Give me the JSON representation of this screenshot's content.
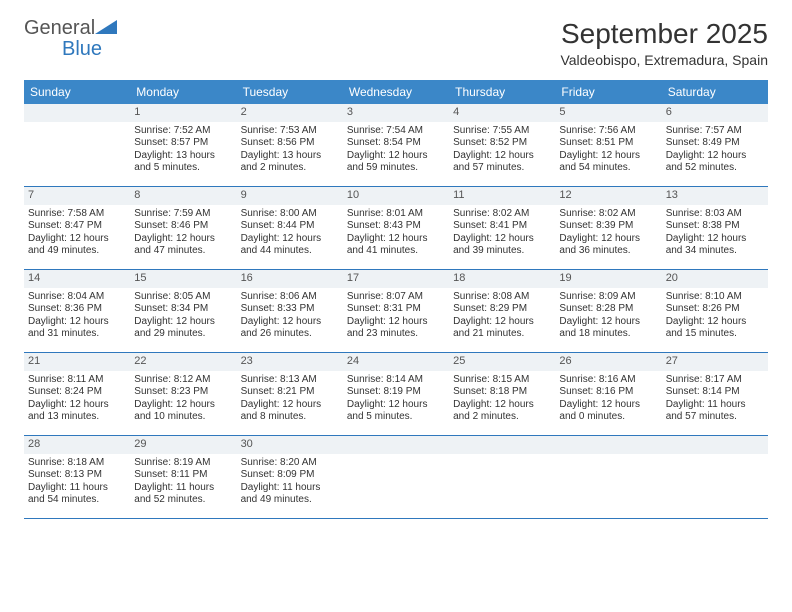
{
  "logo": {
    "text1": "General",
    "text2": "Blue"
  },
  "title": "September 2025",
  "subtitle": "Valdeobispo, Extremadura, Spain",
  "colors": {
    "header_bg": "#3b87c8",
    "header_text": "#ffffff",
    "daynum_bg": "#eef2f5",
    "border": "#2f78bd",
    "logo_accent": "#2f78bd"
  },
  "day_headers": [
    "Sunday",
    "Monday",
    "Tuesday",
    "Wednesday",
    "Thursday",
    "Friday",
    "Saturday"
  ],
  "weeks": [
    [
      {
        "n": "",
        "sr": "",
        "ss": "",
        "dl": ""
      },
      {
        "n": "1",
        "sr": "Sunrise: 7:52 AM",
        "ss": "Sunset: 8:57 PM",
        "dl": "Daylight: 13 hours and 5 minutes."
      },
      {
        "n": "2",
        "sr": "Sunrise: 7:53 AM",
        "ss": "Sunset: 8:56 PM",
        "dl": "Daylight: 13 hours and 2 minutes."
      },
      {
        "n": "3",
        "sr": "Sunrise: 7:54 AM",
        "ss": "Sunset: 8:54 PM",
        "dl": "Daylight: 12 hours and 59 minutes."
      },
      {
        "n": "4",
        "sr": "Sunrise: 7:55 AM",
        "ss": "Sunset: 8:52 PM",
        "dl": "Daylight: 12 hours and 57 minutes."
      },
      {
        "n": "5",
        "sr": "Sunrise: 7:56 AM",
        "ss": "Sunset: 8:51 PM",
        "dl": "Daylight: 12 hours and 54 minutes."
      },
      {
        "n": "6",
        "sr": "Sunrise: 7:57 AM",
        "ss": "Sunset: 8:49 PM",
        "dl": "Daylight: 12 hours and 52 minutes."
      }
    ],
    [
      {
        "n": "7",
        "sr": "Sunrise: 7:58 AM",
        "ss": "Sunset: 8:47 PM",
        "dl": "Daylight: 12 hours and 49 minutes."
      },
      {
        "n": "8",
        "sr": "Sunrise: 7:59 AM",
        "ss": "Sunset: 8:46 PM",
        "dl": "Daylight: 12 hours and 47 minutes."
      },
      {
        "n": "9",
        "sr": "Sunrise: 8:00 AM",
        "ss": "Sunset: 8:44 PM",
        "dl": "Daylight: 12 hours and 44 minutes."
      },
      {
        "n": "10",
        "sr": "Sunrise: 8:01 AM",
        "ss": "Sunset: 8:43 PM",
        "dl": "Daylight: 12 hours and 41 minutes."
      },
      {
        "n": "11",
        "sr": "Sunrise: 8:02 AM",
        "ss": "Sunset: 8:41 PM",
        "dl": "Daylight: 12 hours and 39 minutes."
      },
      {
        "n": "12",
        "sr": "Sunrise: 8:02 AM",
        "ss": "Sunset: 8:39 PM",
        "dl": "Daylight: 12 hours and 36 minutes."
      },
      {
        "n": "13",
        "sr": "Sunrise: 8:03 AM",
        "ss": "Sunset: 8:38 PM",
        "dl": "Daylight: 12 hours and 34 minutes."
      }
    ],
    [
      {
        "n": "14",
        "sr": "Sunrise: 8:04 AM",
        "ss": "Sunset: 8:36 PM",
        "dl": "Daylight: 12 hours and 31 minutes."
      },
      {
        "n": "15",
        "sr": "Sunrise: 8:05 AM",
        "ss": "Sunset: 8:34 PM",
        "dl": "Daylight: 12 hours and 29 minutes."
      },
      {
        "n": "16",
        "sr": "Sunrise: 8:06 AM",
        "ss": "Sunset: 8:33 PM",
        "dl": "Daylight: 12 hours and 26 minutes."
      },
      {
        "n": "17",
        "sr": "Sunrise: 8:07 AM",
        "ss": "Sunset: 8:31 PM",
        "dl": "Daylight: 12 hours and 23 minutes."
      },
      {
        "n": "18",
        "sr": "Sunrise: 8:08 AM",
        "ss": "Sunset: 8:29 PM",
        "dl": "Daylight: 12 hours and 21 minutes."
      },
      {
        "n": "19",
        "sr": "Sunrise: 8:09 AM",
        "ss": "Sunset: 8:28 PM",
        "dl": "Daylight: 12 hours and 18 minutes."
      },
      {
        "n": "20",
        "sr": "Sunrise: 8:10 AM",
        "ss": "Sunset: 8:26 PM",
        "dl": "Daylight: 12 hours and 15 minutes."
      }
    ],
    [
      {
        "n": "21",
        "sr": "Sunrise: 8:11 AM",
        "ss": "Sunset: 8:24 PM",
        "dl": "Daylight: 12 hours and 13 minutes."
      },
      {
        "n": "22",
        "sr": "Sunrise: 8:12 AM",
        "ss": "Sunset: 8:23 PM",
        "dl": "Daylight: 12 hours and 10 minutes."
      },
      {
        "n": "23",
        "sr": "Sunrise: 8:13 AM",
        "ss": "Sunset: 8:21 PM",
        "dl": "Daylight: 12 hours and 8 minutes."
      },
      {
        "n": "24",
        "sr": "Sunrise: 8:14 AM",
        "ss": "Sunset: 8:19 PM",
        "dl": "Daylight: 12 hours and 5 minutes."
      },
      {
        "n": "25",
        "sr": "Sunrise: 8:15 AM",
        "ss": "Sunset: 8:18 PM",
        "dl": "Daylight: 12 hours and 2 minutes."
      },
      {
        "n": "26",
        "sr": "Sunrise: 8:16 AM",
        "ss": "Sunset: 8:16 PM",
        "dl": "Daylight: 12 hours and 0 minutes."
      },
      {
        "n": "27",
        "sr": "Sunrise: 8:17 AM",
        "ss": "Sunset: 8:14 PM",
        "dl": "Daylight: 11 hours and 57 minutes."
      }
    ],
    [
      {
        "n": "28",
        "sr": "Sunrise: 8:18 AM",
        "ss": "Sunset: 8:13 PM",
        "dl": "Daylight: 11 hours and 54 minutes."
      },
      {
        "n": "29",
        "sr": "Sunrise: 8:19 AM",
        "ss": "Sunset: 8:11 PM",
        "dl": "Daylight: 11 hours and 52 minutes."
      },
      {
        "n": "30",
        "sr": "Sunrise: 8:20 AM",
        "ss": "Sunset: 8:09 PM",
        "dl": "Daylight: 11 hours and 49 minutes."
      },
      {
        "n": "",
        "sr": "",
        "ss": "",
        "dl": ""
      },
      {
        "n": "",
        "sr": "",
        "ss": "",
        "dl": ""
      },
      {
        "n": "",
        "sr": "",
        "ss": "",
        "dl": ""
      },
      {
        "n": "",
        "sr": "",
        "ss": "",
        "dl": ""
      }
    ]
  ]
}
